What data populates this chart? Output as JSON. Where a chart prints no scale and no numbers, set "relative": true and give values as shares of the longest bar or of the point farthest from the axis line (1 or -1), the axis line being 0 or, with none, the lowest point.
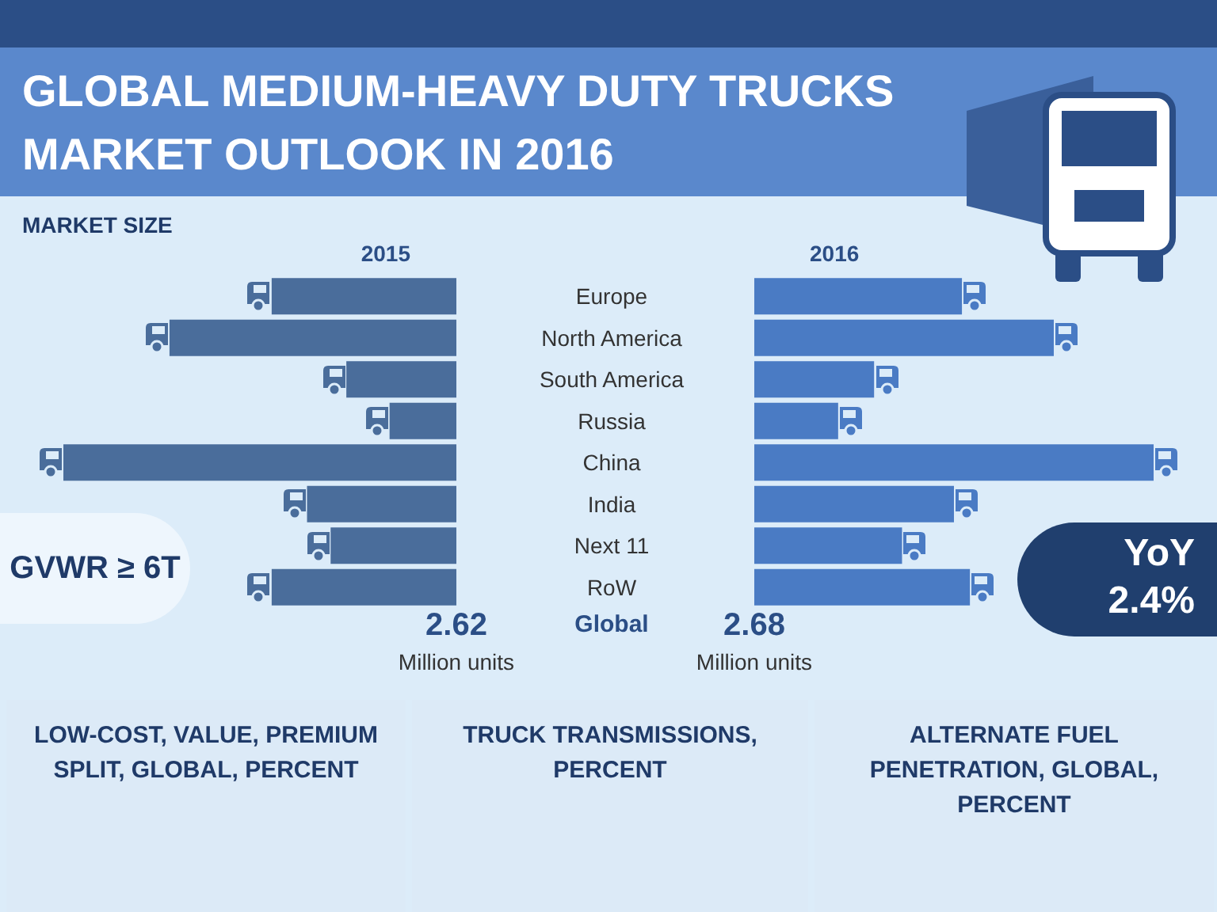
{
  "chart_data": [
    {
      "type": "other",
      "title": "GLOBAL MEDIUM-HEAVY DUTY TRUCKS MARKET OUTLOOK IN 2016",
      "annotations": [
        "MARKET SIZE",
        "GVWR ≥ 6T",
        "YoY",
        "2.4%"
      ]
    },
    {
      "type": "bar",
      "orientation": "horizontal",
      "relative": true,
      "title": "2015",
      "categories": [
        "Europe",
        "North America",
        "South America",
        "Russia",
        "China",
        "India",
        "Next 11",
        "RoW"
      ],
      "values": [
        0.47,
        0.73,
        0.28,
        0.17,
        1,
        0.38,
        0.32,
        0.47
      ],
      "color": "#4a6d9b",
      "annotations": [
        "Global",
        "2.62",
        "Million units"
      ]
    },
    {
      "type": "bar",
      "orientation": "horizontal",
      "relative": true,
      "title": "2016",
      "categories": [
        null,
        null,
        null,
        null,
        null,
        null,
        null,
        null
      ],
      "values": [
        0.52,
        0.75,
        0.3,
        0.21,
        1,
        0.5,
        0.37,
        0.54
      ],
      "color": "#4a7bc4",
      "annotations": [
        "2.68",
        "Million units"
      ]
    },
    {
      "type": "other",
      "title": "LOW-COST, VALUE, PREMIUM SPLIT, GLOBAL, PERCENT"
    },
    {
      "type": "other",
      "title": "TRUCK TRANSMISSIONS, PERCENT"
    },
    {
      "type": "other",
      "title": "ALTERNATE FUEL PENETRATION, GLOBAL, PERCENT"
    }
  ]
}
